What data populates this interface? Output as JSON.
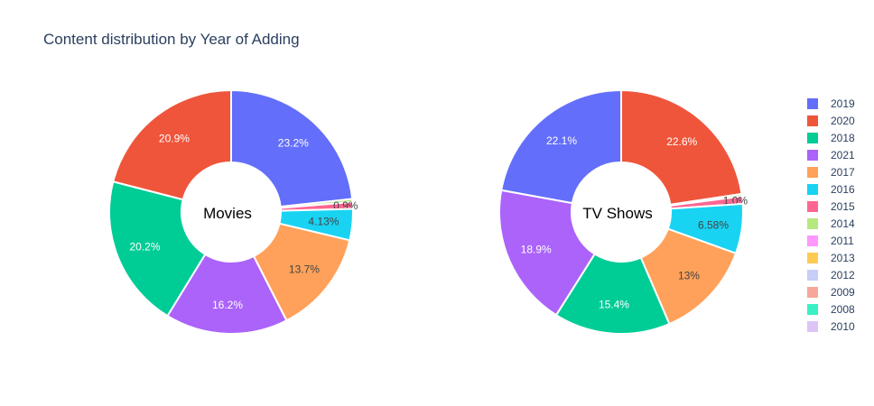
{
  "title": "Content distribution by Year of Adding",
  "chart_data": {
    "type": "pie",
    "hole": true,
    "legend_placement": "right",
    "legend": [
      {
        "label": "2019",
        "color": "#636efa"
      },
      {
        "label": "2020",
        "color": "#ef553b"
      },
      {
        "label": "2018",
        "color": "#00cc96"
      },
      {
        "label": "2021",
        "color": "#ab63fa"
      },
      {
        "label": "2017",
        "color": "#ffa15a"
      },
      {
        "label": "2016",
        "color": "#19d3f3"
      },
      {
        "label": "2015",
        "color": "#ff6692"
      },
      {
        "label": "2014",
        "color": "#b6e880"
      },
      {
        "label": "2011",
        "color": "#ff97ff"
      },
      {
        "label": "2013",
        "color": "#fecb52"
      },
      {
        "label": "2012",
        "color": "#c6cdf7"
      },
      {
        "label": "2009",
        "color": "#f7a799"
      },
      {
        "label": "2008",
        "color": "#3af0c4"
      },
      {
        "label": "2010",
        "color": "#dcc5f5"
      }
    ],
    "charts": [
      {
        "center_label": "Movies",
        "slices": [
          {
            "label": "2019",
            "value": 23.2,
            "text": "23.2%"
          },
          {
            "label": "2014",
            "value": 0.4,
            "text": ""
          },
          {
            "label": "2015",
            "value": 0.9,
            "text": "0.9%"
          },
          {
            "label": "2016",
            "value": 4.13,
            "text": "4.13%"
          },
          {
            "label": "2017",
            "value": 13.7,
            "text": "13.7%"
          },
          {
            "label": "2021",
            "value": 16.2,
            "text": "16.2%"
          },
          {
            "label": "2018",
            "value": 20.2,
            "text": "20.2%"
          },
          {
            "label": "2020",
            "value": 20.9,
            "text": "20.9%"
          }
        ]
      },
      {
        "center_label": "TV Shows",
        "slices": [
          {
            "label": "2020",
            "value": 22.6,
            "text": "22.6%"
          },
          {
            "label": "2014",
            "value": 0.3,
            "text": ""
          },
          {
            "label": "2015",
            "value": 1.0,
            "text": "1.0%"
          },
          {
            "label": "2016",
            "value": 6.58,
            "text": "6.58%"
          },
          {
            "label": "2017",
            "value": 13.0,
            "text": "13%"
          },
          {
            "label": "2018",
            "value": 15.4,
            "text": "15.4%"
          },
          {
            "label": "2021",
            "value": 18.9,
            "text": "18.9%"
          },
          {
            "label": "2019",
            "value": 22.1,
            "text": "22.1%"
          }
        ]
      }
    ]
  }
}
